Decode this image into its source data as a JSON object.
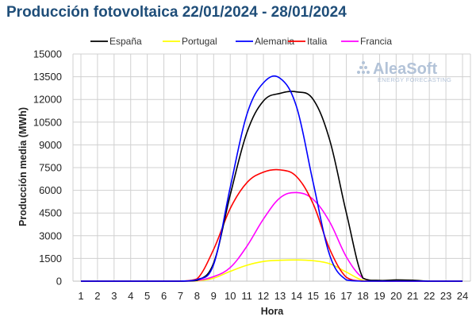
{
  "chart_data": {
    "type": "line",
    "title": "Producción fotovoltaica 22/01/2024 - 28/01/2024",
    "xlabel": "Hora",
    "ylabel": "Producción media (MWh)",
    "x": [
      1,
      2,
      3,
      4,
      5,
      6,
      7,
      8,
      9,
      10,
      11,
      12,
      13,
      14,
      15,
      16,
      17,
      18,
      19,
      20,
      21,
      22,
      23,
      24
    ],
    "xlim": [
      1,
      24
    ],
    "ylim": [
      0,
      15000
    ],
    "yticks": [
      0,
      1500,
      3000,
      4500,
      6000,
      7500,
      9000,
      10500,
      12000,
      13500,
      15000
    ],
    "grid": true,
    "legend_position": "top",
    "series": [
      {
        "name": "España",
        "color": "#000000",
        "values": [
          0,
          0,
          0,
          0,
          0,
          0,
          0,
          50,
          1200,
          5700,
          9800,
          11900,
          12400,
          12500,
          12000,
          9300,
          4500,
          200,
          50,
          80,
          60,
          0,
          0,
          0
        ]
      },
      {
        "name": "Portugal",
        "color": "#ffff00",
        "values": [
          0,
          0,
          0,
          0,
          0,
          0,
          0,
          20,
          200,
          650,
          1050,
          1300,
          1380,
          1400,
          1350,
          1150,
          600,
          50,
          0,
          0,
          0,
          0,
          0,
          0
        ]
      },
      {
        "name": "Alemania",
        "color": "#0000ff",
        "values": [
          0,
          0,
          0,
          0,
          0,
          0,
          0,
          100,
          1100,
          6200,
          11000,
          13100,
          13400,
          11500,
          6500,
          1700,
          80,
          0,
          0,
          0,
          0,
          0,
          0,
          0
        ]
      },
      {
        "name": "Italia",
        "color": "#ff0000",
        "values": [
          0,
          0,
          0,
          0,
          0,
          0,
          0,
          150,
          2100,
          4800,
          6500,
          7200,
          7350,
          6900,
          5100,
          2100,
          250,
          0,
          0,
          0,
          0,
          0,
          0,
          0
        ]
      },
      {
        "name": "Francia",
        "color": "#ff00ff",
        "values": [
          0,
          0,
          0,
          0,
          0,
          0,
          0,
          50,
          300,
          900,
          2300,
          4100,
          5500,
          5850,
          5400,
          3900,
          1600,
          200,
          0,
          0,
          0,
          0,
          0,
          0
        ]
      }
    ]
  },
  "watermark": {
    "brand": "AleaSoft",
    "tagline": "ENERGY FORECASTING"
  }
}
